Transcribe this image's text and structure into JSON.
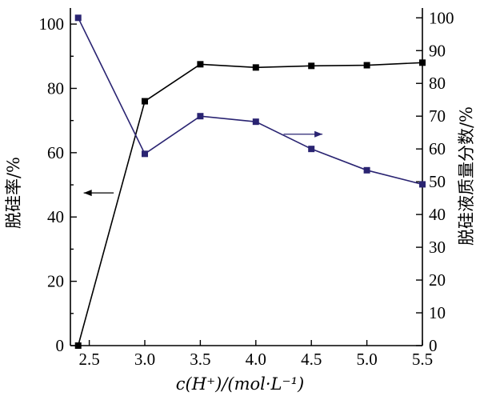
{
  "chart_data": {
    "type": "line",
    "xlabel": "c(H⁺)/(mol·L⁻¹)",
    "ylabel_left": "脱硅率/%",
    "ylabel_right": "脱硅液质量分数/%",
    "xlim": [
      2.33,
      5.5
    ],
    "ylim_left": [
      0,
      105
    ],
    "ylim_right": [
      0,
      103
    ],
    "x_ticks": [
      2.5,
      3.0,
      3.5,
      4.0,
      4.5,
      5.0,
      5.5
    ],
    "x_tick_labels": [
      "2.5",
      "3.0",
      "3.5",
      "4.0",
      "4.5",
      "5.0",
      "5.5"
    ],
    "y_left_ticks": [
      0,
      20,
      40,
      60,
      80,
      100
    ],
    "y_right_ticks": [
      0,
      10,
      20,
      30,
      40,
      50,
      60,
      70,
      80,
      90,
      100
    ],
    "series": [
      {
        "axis": "left",
        "color": "#000000",
        "marker": "square",
        "x": [
          2.4,
          3.0,
          3.5,
          4.0,
          4.5,
          5.0,
          5.5
        ],
        "y": [
          0,
          76,
          87.5,
          86.5,
          87,
          87.2,
          88
        ]
      },
      {
        "axis": "right",
        "color": "#2a2472",
        "marker": "square",
        "x": [
          2.4,
          3.0,
          3.5,
          4.0,
          4.5,
          5.0,
          5.5
        ],
        "y": [
          100,
          58.5,
          70,
          68.3,
          60,
          53.5,
          49.2
        ]
      }
    ],
    "annotations": [
      {
        "type": "arrow",
        "direction": "left",
        "color": "#000000",
        "x_from": 2.72,
        "x_to": 2.45,
        "y": 47.5,
        "axis": "left"
      },
      {
        "type": "arrow",
        "direction": "right",
        "color": "#2a2472",
        "x_from": 4.25,
        "x_to": 4.6,
        "y": 64.5,
        "axis": "right"
      }
    ]
  }
}
